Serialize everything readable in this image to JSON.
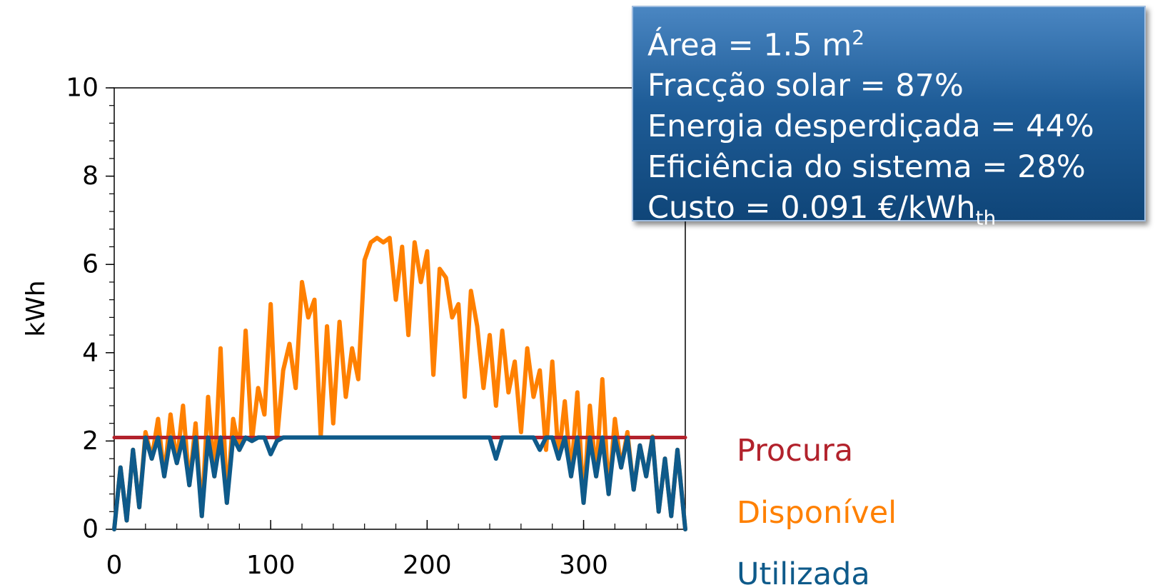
{
  "info_box": {
    "area_text": "Área = 1.5 m",
    "area_sup": "2",
    "solar_fraction": "Fracção solar = 87%",
    "wasted_energy": "Energia desperdiçada = 44%",
    "system_efficiency": "Eficiência do sistema = 28%",
    "cost_text": "Custo = 0.091 €/kWh",
    "cost_sub": "th"
  },
  "colors": {
    "procura": "#b2222c",
    "disponivel": "#ff8000",
    "utilizada": "#0e5a8a"
  },
  "chart_data": {
    "type": "line",
    "title": "",
    "xlabel": "",
    "ylabel": "kWh",
    "xlim": [
      0,
      365
    ],
    "ylim": [
      0,
      10
    ],
    "x_ticks": [
      0,
      100,
      200,
      300
    ],
    "y_ticks": [
      0,
      2,
      4,
      6,
      8,
      10
    ],
    "grid": false,
    "legend_position": "right",
    "series": [
      {
        "name": "Procura",
        "x": [
          0,
          365
        ],
        "values": [
          2.08,
          2.08
        ]
      },
      {
        "name": "Disponível",
        "x": [
          0,
          4,
          8,
          12,
          16,
          20,
          24,
          28,
          32,
          36,
          40,
          44,
          48,
          52,
          56,
          60,
          64,
          68,
          72,
          76,
          80,
          84,
          88,
          92,
          96,
          100,
          104,
          108,
          112,
          116,
          120,
          124,
          128,
          132,
          136,
          140,
          144,
          148,
          152,
          156,
          160,
          164,
          168,
          172,
          176,
          180,
          184,
          188,
          192,
          196,
          200,
          204,
          208,
          212,
          216,
          220,
          224,
          228,
          232,
          236,
          240,
          244,
          248,
          252,
          256,
          260,
          264,
          268,
          272,
          276,
          280,
          284,
          288,
          292,
          296,
          300,
          304,
          308,
          312,
          316,
          320,
          324,
          328,
          332,
          336,
          340,
          344,
          348,
          352,
          356,
          360,
          365
        ],
        "values": [
          0.0,
          1.4,
          0.2,
          1.8,
          0.5,
          2.2,
          1.6,
          2.5,
          1.2,
          2.6,
          1.5,
          2.8,
          1.0,
          2.4,
          0.3,
          3.0,
          1.2,
          4.1,
          0.6,
          2.5,
          1.8,
          4.5,
          2.0,
          3.2,
          2.6,
          5.1,
          2.0,
          3.6,
          4.2,
          3.2,
          5.6,
          4.8,
          5.2,
          2.1,
          4.6,
          2.4,
          4.7,
          3.0,
          4.1,
          3.4,
          6.1,
          6.5,
          6.6,
          6.5,
          6.6,
          5.2,
          6.4,
          4.4,
          6.5,
          5.6,
          6.3,
          3.5,
          5.9,
          5.7,
          4.8,
          5.1,
          3.0,
          5.4,
          4.6,
          3.2,
          4.4,
          2.8,
          4.5,
          3.1,
          3.8,
          2.2,
          4.1,
          3.0,
          3.6,
          1.8,
          3.8,
          1.6,
          2.9,
          1.2,
          3.1,
          0.6,
          2.8,
          1.2,
          3.4,
          0.8,
          2.5,
          1.4,
          2.2,
          0.9,
          1.9,
          1.2,
          2.1,
          0.4,
          1.6,
          0.3,
          1.8,
          0.0
        ]
      },
      {
        "name": "Utilizada",
        "x": [
          0,
          4,
          8,
          12,
          16,
          20,
          24,
          28,
          32,
          36,
          40,
          44,
          48,
          52,
          56,
          60,
          64,
          68,
          72,
          76,
          80,
          84,
          88,
          92,
          96,
          100,
          104,
          108,
          112,
          116,
          120,
          124,
          128,
          132,
          136,
          140,
          144,
          148,
          152,
          156,
          160,
          164,
          168,
          172,
          176,
          180,
          184,
          188,
          192,
          196,
          200,
          204,
          208,
          212,
          216,
          220,
          224,
          228,
          232,
          236,
          240,
          244,
          248,
          252,
          256,
          260,
          264,
          268,
          272,
          276,
          280,
          284,
          288,
          292,
          296,
          300,
          304,
          308,
          312,
          316,
          320,
          324,
          328,
          332,
          336,
          340,
          344,
          348,
          352,
          356,
          360,
          365
        ],
        "values": [
          0.0,
          1.4,
          0.2,
          1.8,
          0.5,
          2.08,
          1.6,
          2.08,
          1.2,
          2.08,
          1.5,
          2.08,
          1.0,
          2.08,
          0.3,
          2.08,
          1.2,
          2.08,
          0.6,
          2.08,
          1.8,
          2.08,
          2.0,
          2.08,
          2.08,
          1.7,
          2.0,
          2.08,
          2.08,
          2.08,
          2.08,
          2.08,
          2.08,
          2.08,
          2.08,
          2.08,
          2.08,
          2.08,
          2.08,
          2.08,
          2.08,
          2.08,
          2.08,
          2.08,
          2.08,
          2.08,
          2.08,
          2.08,
          2.08,
          2.08,
          2.08,
          2.08,
          2.08,
          2.08,
          2.08,
          2.08,
          2.08,
          2.08,
          2.08,
          2.08,
          2.08,
          1.6,
          2.08,
          2.08,
          2.08,
          2.08,
          2.08,
          2.08,
          1.8,
          2.08,
          2.08,
          1.6,
          2.08,
          1.2,
          2.08,
          0.6,
          2.08,
          1.2,
          2.08,
          0.8,
          2.08,
          1.4,
          2.08,
          0.9,
          1.9,
          1.2,
          2.08,
          0.4,
          1.6,
          0.3,
          1.8,
          0.0
        ]
      }
    ]
  }
}
